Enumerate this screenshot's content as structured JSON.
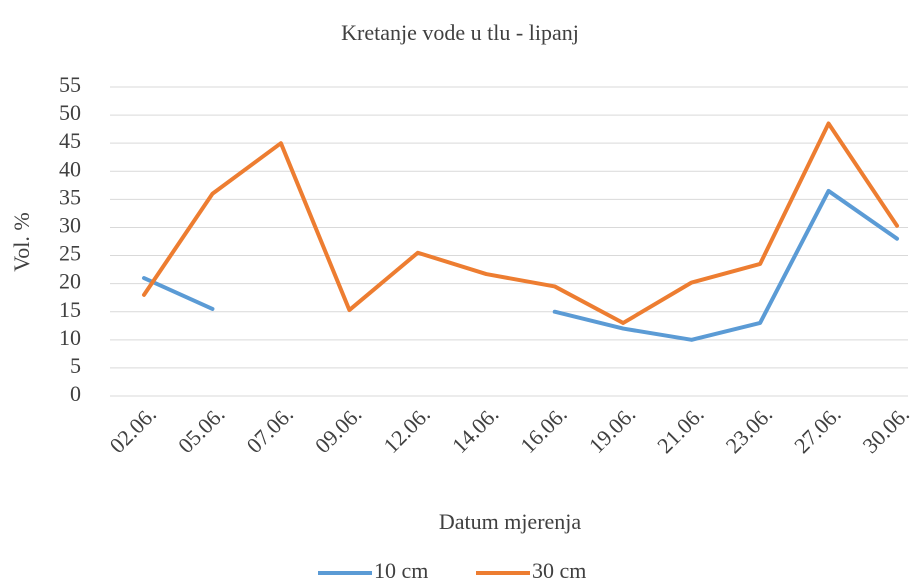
{
  "chart_data": {
    "type": "line",
    "title": "Kretanje vode u tlu - lipanj",
    "x_label": "Datum mjerenja",
    "y_label": "Vol. %",
    "categories": [
      "02.06.",
      "05.06.",
      "07.06.",
      "09.06.",
      "12.06.",
      "14.06.",
      "16.06.",
      "19.06.",
      "21.06.",
      "23.06.",
      "27.06.",
      "30.06."
    ],
    "series": [
      {
        "name": "10 cm",
        "color": "#5b9bd5",
        "values": [
          21,
          15.5,
          null,
          null,
          null,
          null,
          15,
          12,
          10,
          13,
          36.5,
          28
        ]
      },
      {
        "name": "30 cm",
        "color": "#ed7d31",
        "values": [
          18,
          36,
          45,
          15.3,
          25.5,
          21.7,
          19.5,
          13,
          20.2,
          23.5,
          48.5,
          30.3
        ]
      }
    ],
    "ylim": [
      0,
      55
    ],
    "yticks": [
      0,
      5,
      10,
      15,
      20,
      25,
      30,
      35,
      40,
      45,
      50,
      55
    ],
    "grid": true,
    "legend": "bottom"
  }
}
